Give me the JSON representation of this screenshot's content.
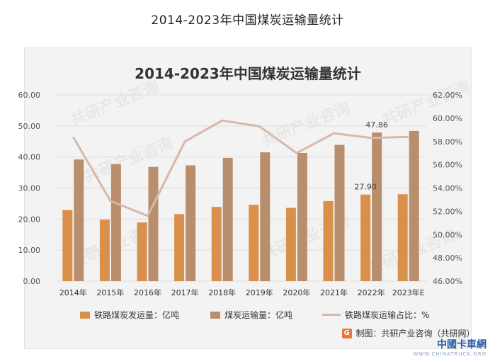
{
  "page_title": "2014-2023年中国煤炭运输量统计",
  "chart_title": "2014-2023年中国煤炭运输量统计",
  "watermark_text": "共研产业咨询",
  "source_label": "制图：共研产业咨询（共研网）",
  "source_logo": "G",
  "badge": {
    "main": "中國卡車網",
    "sub": "WWW.CHINATRUCK.ORG"
  },
  "colors": {
    "rail": "#d8904a",
    "coal": "#b98e6c",
    "ratio": "#d8b8aa",
    "axis_text": "#555555",
    "grid": "#dddddd"
  },
  "chart_data": {
    "type": "bar",
    "title": "2014-2023年中国煤炭运输量统计",
    "categories": [
      "2014年",
      "2015年",
      "2016年",
      "2017年",
      "2018年",
      "2019年",
      "2020年",
      "2021年",
      "2022年",
      "2023年E"
    ],
    "series": [
      {
        "name": "铁路煤炭发运量：亿吨",
        "type": "bar",
        "axis": "left",
        "values": [
          22.9,
          19.8,
          18.9,
          21.6,
          23.9,
          24.6,
          23.6,
          25.8,
          27.9,
          28.0
        ]
      },
      {
        "name": "煤炭运输量：亿吨",
        "type": "bar",
        "axis": "left",
        "values": [
          39.2,
          37.7,
          36.8,
          37.3,
          39.7,
          41.5,
          41.3,
          43.9,
          47.86,
          48.4
        ]
      },
      {
        "name": "铁路煤炭运输占比：%",
        "type": "line",
        "axis": "right",
        "values": [
          58.4,
          52.9,
          51.6,
          58.0,
          59.8,
          59.3,
          57.0,
          58.7,
          58.3,
          58.4
        ]
      }
    ],
    "left_axis": {
      "min": 0,
      "max": 60,
      "step": 10,
      "tick_labels": [
        "0.00",
        "10.00",
        "20.00",
        "30.00",
        "40.00",
        "50.00",
        "60.00"
      ]
    },
    "right_axis": {
      "min": 46,
      "max": 62,
      "step": 2,
      "tick_labels": [
        "46.00%",
        "48.00%",
        "50.00%",
        "52.00%",
        "54.00%",
        "56.00%",
        "58.00%",
        "60.00%",
        "62.00%"
      ]
    },
    "data_labels": [
      {
        "series": 0,
        "index": 8,
        "text": "27.90"
      },
      {
        "series": 1,
        "index": 8,
        "text": "47.86"
      }
    ],
    "legend": [
      "铁路煤炭发运量：亿吨",
      "煤炭运输量：亿吨",
      "铁路煤炭运输占比：%"
    ],
    "legend_position": "bottom",
    "grid": true
  }
}
